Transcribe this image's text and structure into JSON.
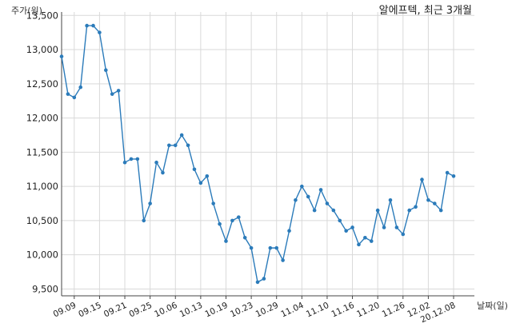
{
  "chart_data": {
    "type": "line",
    "title": "알에프텍, 최근 3개월",
    "ylabel": "주가(원)",
    "xlabel": "날짜(일)",
    "ylim": [
      9400,
      13550
    ],
    "y_ticks": [
      "9,500",
      "10,000",
      "10,500",
      "11,000",
      "11,500",
      "12,000",
      "12,500",
      "13,000",
      "13,500"
    ],
    "y_tick_values": [
      9500,
      10000,
      10500,
      11000,
      11500,
      12000,
      12500,
      13000,
      13500
    ],
    "x_tick_labels": [
      "09.09",
      "09.15",
      "09.21",
      "09.25",
      "10.06",
      "10.13",
      "10.19",
      "10.23",
      "10.29",
      "11.04",
      "11.10",
      "11.16",
      "11.20",
      "11.26",
      "12.02",
      "20.12.08"
    ],
    "x_tick_indices": [
      2,
      6,
      10,
      14,
      18,
      22,
      26,
      30,
      34,
      38,
      42,
      46,
      50,
      54,
      58,
      62
    ],
    "grid": true,
    "line_color": "#2b7bba",
    "series": [
      {
        "values": [
          12900,
          12350,
          12300,
          12450,
          13350,
          13350,
          13250,
          12700,
          12350,
          12400,
          11350,
          11400,
          11400,
          10500,
          10750,
          11350,
          11200,
          11600,
          11600,
          11750,
          11600,
          11250,
          11050,
          11150,
          10750,
          10450,
          10200,
          10500,
          10550,
          10250,
          10100,
          9600,
          9650,
          10100,
          10100,
          9920,
          10350,
          10800,
          11000,
          10850,
          10650,
          10950,
          10750,
          10650,
          10500,
          10350,
          10400,
          10150,
          10250,
          10200,
          10650,
          10400,
          10800,
          10400,
          10300,
          10650,
          10700,
          11100,
          10800,
          10750,
          10650,
          11200,
          11150
        ]
      }
    ]
  }
}
